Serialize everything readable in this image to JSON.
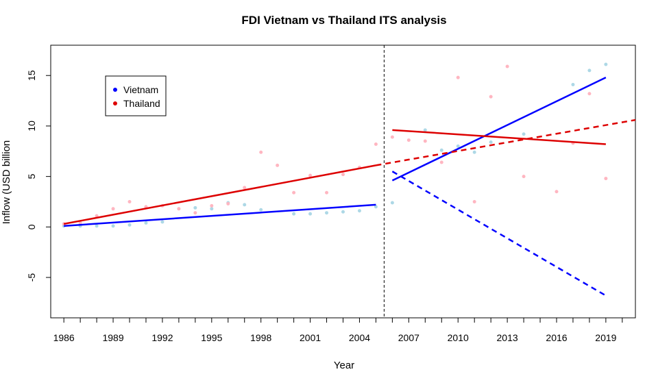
{
  "chart_data": {
    "type": "scatter",
    "title": "FDI Vietnam vs Thailand ITS analysis",
    "xlabel": "Year",
    "ylabel": "Inflow (USD billion",
    "xlim": [
      1985.2,
      2020.8
    ],
    "ylim": [
      -9,
      18
    ],
    "x_ticks": [
      1986,
      1987,
      1988,
      1989,
      1990,
      1991,
      1992,
      1993,
      1994,
      1995,
      1996,
      1997,
      1998,
      1999,
      2000,
      2001,
      2002,
      2003,
      2004,
      2005,
      2006,
      2007,
      2008,
      2009,
      2010,
      2011,
      2012,
      2013,
      2014,
      2015,
      2016,
      2017,
      2018,
      2019,
      2020
    ],
    "x_tick_labels": [
      {
        "x": 1986,
        "label": "1986"
      },
      {
        "x": 1989,
        "label": "1989"
      },
      {
        "x": 1992,
        "label": "1992"
      },
      {
        "x": 1995,
        "label": "1995"
      },
      {
        "x": 1998,
        "label": "1998"
      },
      {
        "x": 2001,
        "label": "2001"
      },
      {
        "x": 2004,
        "label": "2004"
      },
      {
        "x": 2007,
        "label": "2007"
      },
      {
        "x": 2010,
        "label": "2010"
      },
      {
        "x": 2013,
        "label": "2013"
      },
      {
        "x": 2016,
        "label": "2016"
      },
      {
        "x": 2019,
        "label": "2019"
      }
    ],
    "y_ticks": [
      -5,
      0,
      5,
      10,
      15
    ],
    "y_tick_labels": [
      "-5",
      "0",
      "5",
      "10",
      "15"
    ],
    "intervention_x": 2005.5,
    "legend": {
      "position": "top-left",
      "entries": [
        {
          "label": "Vietnam",
          "color": "#0000ff"
        },
        {
          "label": "Thailand",
          "color": "#dd0000"
        }
      ]
    },
    "series": [
      {
        "name": "Vietnam",
        "point_color": "#add8e6",
        "line_color": "#0000ff",
        "points": [
          [
            1986,
            0.1
          ],
          [
            1987,
            0.1
          ],
          [
            1988,
            0.1
          ],
          [
            1989,
            0.1
          ],
          [
            1990,
            0.2
          ],
          [
            1991,
            0.4
          ],
          [
            1992,
            0.5
          ],
          [
            1994,
            1.9
          ],
          [
            1995,
            1.8
          ],
          [
            1996,
            2.4
          ],
          [
            1997,
            2.2
          ],
          [
            1998,
            1.7
          ],
          [
            2000,
            1.3
          ],
          [
            2001,
            1.3
          ],
          [
            2002,
            1.4
          ],
          [
            2003,
            1.5
          ],
          [
            2004,
            1.6
          ],
          [
            2005,
            2.0
          ],
          [
            2006,
            2.4
          ],
          [
            2008,
            9.6
          ],
          [
            2009,
            7.6
          ],
          [
            2010,
            8.0
          ],
          [
            2011,
            7.4
          ],
          [
            2012,
            8.4
          ],
          [
            2014,
            9.2
          ],
          [
            2017,
            14.1
          ],
          [
            2018,
            15.5
          ],
          [
            2019,
            16.1
          ]
        ],
        "pre_trend": [
          [
            1986,
            0.1
          ],
          [
            2005,
            2.2
          ]
        ],
        "post_trend": [
          [
            2006,
            4.6
          ],
          [
            2019,
            14.8
          ]
        ],
        "counterfactual": [
          [
            2006,
            5.5
          ],
          [
            2019,
            -6.8
          ]
        ]
      },
      {
        "name": "Thailand",
        "point_color": "#ffb6c1",
        "line_color": "#dd0000",
        "points": [
          [
            1986,
            0.3
          ],
          [
            1987,
            0.4
          ],
          [
            1988,
            1.1
          ],
          [
            1989,
            1.8
          ],
          [
            1990,
            2.5
          ],
          [
            1991,
            2.0
          ],
          [
            1992,
            2.1
          ],
          [
            1993,
            1.8
          ],
          [
            1994,
            1.4
          ],
          [
            1995,
            2.1
          ],
          [
            1996,
            2.3
          ],
          [
            1997,
            3.9
          ],
          [
            1998,
            7.4
          ],
          [
            1999,
            6.1
          ],
          [
            2000,
            3.4
          ],
          [
            2001,
            5.1
          ],
          [
            2002,
            3.4
          ],
          [
            2003,
            5.2
          ],
          [
            2004,
            5.9
          ],
          [
            2005,
            8.2
          ],
          [
            2006,
            8.9
          ],
          [
            2007,
            8.6
          ],
          [
            2008,
            8.5
          ],
          [
            2009,
            6.4
          ],
          [
            2010,
            14.8
          ],
          [
            2011,
            2.5
          ],
          [
            2012,
            12.9
          ],
          [
            2013,
            15.9
          ],
          [
            2014,
            5.0
          ],
          [
            2016,
            3.5
          ],
          [
            2017,
            8.3
          ],
          [
            2018,
            13.2
          ],
          [
            2019,
            4.8
          ]
        ],
        "pre_trend": [
          [
            1986,
            0.3
          ],
          [
            2005,
            6.1
          ]
        ],
        "post_trend": [
          [
            2006,
            9.6
          ],
          [
            2019,
            8.2
          ]
        ],
        "counterfactual": [
          [
            2005,
            6.1
          ],
          [
            2020.8,
            10.6
          ]
        ]
      }
    ]
  }
}
